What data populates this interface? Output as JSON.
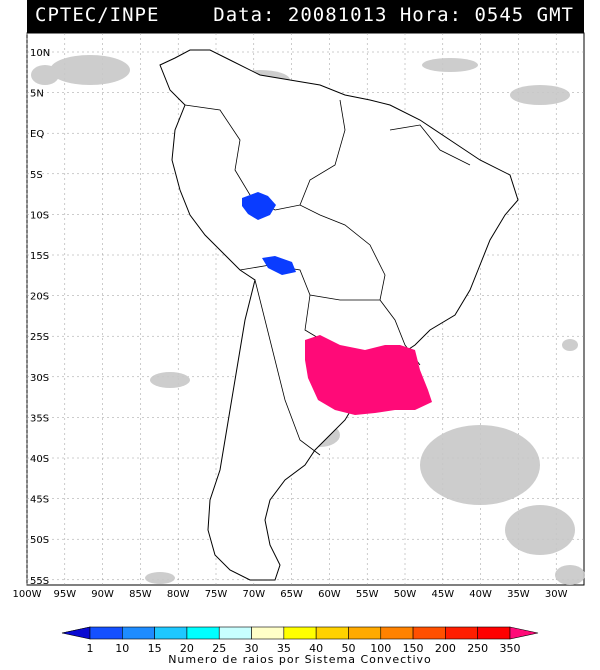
{
  "header": {
    "title": "CPTEC/INPE",
    "info": "Data: 20081013 Hora: 0545 GMT"
  },
  "map": {
    "lat_labels": [
      "10N",
      "5N",
      "EQ",
      "5S",
      "10S",
      "15S",
      "20S",
      "25S",
      "30S",
      "35S",
      "40S",
      "45S",
      "50S",
      "55S"
    ],
    "lon_labels": [
      "100W",
      "95W",
      "90W",
      "85W",
      "80W",
      "75W",
      "70W",
      "65W",
      "60W",
      "55W",
      "50W",
      "45W",
      "40W",
      "35W",
      "30W"
    ],
    "grid": true,
    "colors": {
      "land_border": "#000000",
      "cloud": "#c8c8c8",
      "grid": "#999999"
    },
    "systems": [
      {
        "name": "north-peru-brazil",
        "class_value": "1",
        "color": "#0a3cff"
      },
      {
        "name": "bolivia",
        "class_value": "1",
        "color": "#0a3cff"
      },
      {
        "name": "southern-brazil-uruguay",
        "class_value": "350",
        "color": "#ff0a78"
      }
    ]
  },
  "colorbar": {
    "labels": [
      "1",
      "10",
      "15",
      "20",
      "25",
      "30",
      "35",
      "40",
      "50",
      "100",
      "150",
      "200",
      "250",
      "350"
    ],
    "colors": [
      "#0a0ad2",
      "#1450ff",
      "#1e8cff",
      "#1ec8ff",
      "#00ffff",
      "#c8ffff",
      "#ffffc8",
      "#ffff00",
      "#ffd200",
      "#ffaa00",
      "#ff8200",
      "#ff5000",
      "#ff1e00",
      "#ff0000",
      "#ff0a78"
    ],
    "title": "Numero de raios por Sistema Convectivo"
  }
}
